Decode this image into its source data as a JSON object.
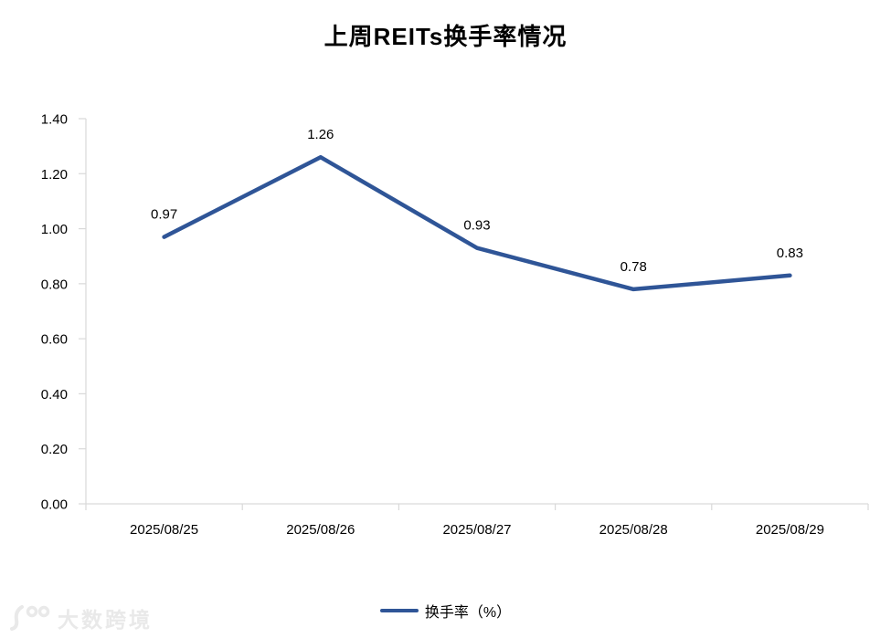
{
  "title": "上周REITs换手率情况",
  "legend": {
    "label": "换手率（%）"
  },
  "watermark": {
    "logo": "100-swoosh-logo",
    "text": "大数跨境"
  },
  "chart_data": {
    "type": "line",
    "title": "上周REITs换手率情况",
    "categories": [
      "2025/08/25",
      "2025/08/26",
      "2025/08/27",
      "2025/08/28",
      "2025/08/29"
    ],
    "series": [
      {
        "name": "换手率（%）",
        "values": [
          0.97,
          1.26,
          0.93,
          0.78,
          0.83
        ]
      }
    ],
    "data_labels": [
      "0.97",
      "1.26",
      "0.93",
      "0.78",
      "0.83"
    ],
    "y_tick_values": [
      0.0,
      0.2,
      0.4,
      0.6,
      0.8,
      1.0,
      1.2,
      1.4
    ],
    "y_tick_labels": [
      "0.00",
      "0.20",
      "0.40",
      "0.60",
      "0.80",
      "1.00",
      "1.20",
      "1.40"
    ],
    "ylim": [
      0,
      1.4
    ],
    "xlabel": "",
    "ylabel": "",
    "grid": false,
    "legend_position": "bottom",
    "colors": {
      "line": "#2F5597",
      "axis": "#D9D9D9",
      "text": "#000000",
      "watermark": "#E9E9E9"
    }
  }
}
